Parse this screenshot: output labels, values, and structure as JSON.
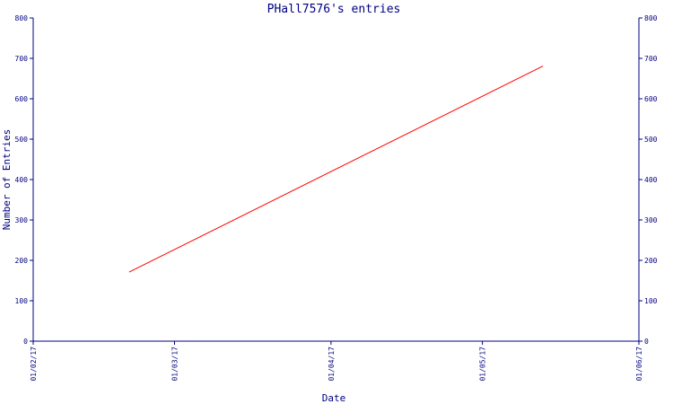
{
  "chart_data": {
    "type": "line",
    "title": "PHall7576's entries",
    "xlabel": "Date",
    "ylabel": "Number of Entries",
    "x_type": "date",
    "xlim": [
      "2017-02-01",
      "2017-06-01"
    ],
    "ylim": [
      0,
      800
    ],
    "x_ticks": [
      {
        "value": "2017-02-01",
        "label": "01/02/17"
      },
      {
        "value": "2017-03-01",
        "label": "01/03/17"
      },
      {
        "value": "2017-04-01",
        "label": "01/04/17"
      },
      {
        "value": "2017-05-01",
        "label": "01/05/17"
      },
      {
        "value": "2017-06-01",
        "label": "01/06/17"
      }
    ],
    "y_ticks": [
      0,
      100,
      200,
      300,
      400,
      500,
      600,
      700,
      800
    ],
    "y_ticks_mirrored_right": true,
    "grid": false,
    "legend": "none",
    "series": [
      {
        "color": "#ff0000",
        "points": [
          {
            "x": "2017-02-20",
            "y": 171
          },
          {
            "x": "2017-05-13",
            "y": 681
          }
        ]
      }
    ],
    "colors": {
      "axis": "#000080",
      "text": "#000080",
      "title": "#000080",
      "line": "#ff0000",
      "background": "#ffffff"
    }
  }
}
